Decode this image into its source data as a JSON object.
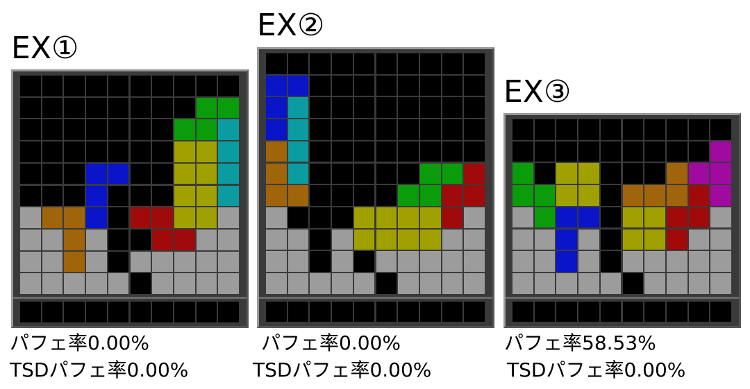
{
  "boards": [
    {
      "title": "EX①",
      "line1": "パフェ率0.00%",
      "line2": "TSDパフェ率0.00%"
    },
    {
      "title": "EX②",
      "line1": "パフェ率0.00%",
      "line2": "TSDパフェ率0.00%"
    },
    {
      "title": "EX③",
      "line1": "パフェ率58.53%",
      "line2": "TSDパフェ率0.00%"
    }
  ]
}
